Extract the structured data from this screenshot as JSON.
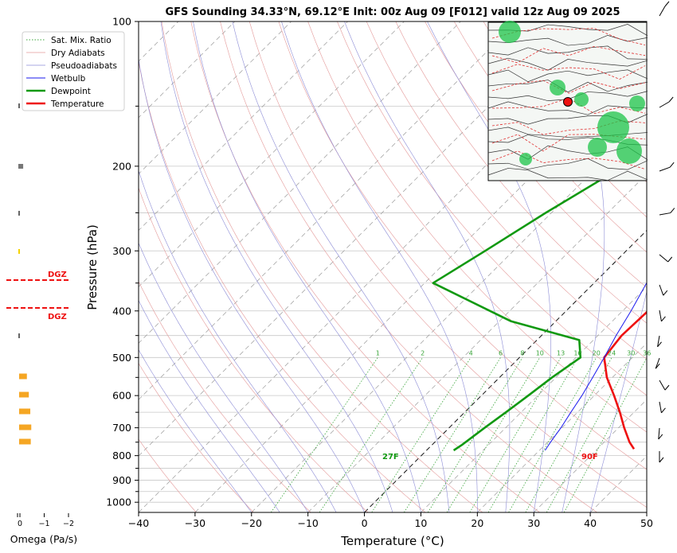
{
  "chart_data": {
    "type": "line",
    "title": "GFS Sounding 34.33°N, 69.12°E Init: 00z Aug 09 [F012] valid 12z Aug 09 2025",
    "xlabel": "Temperature (°C)",
    "ylabel": "Pressure (hPa)",
    "xlim": [
      -40,
      50
    ],
    "ylim": [
      1050,
      100
    ],
    "y_scale": "log",
    "x_ticks": [
      "−40",
      "−30",
      "−20",
      "−10",
      "0",
      "10",
      "20",
      "30",
      "40",
      "50"
    ],
    "y_ticks": [
      "100",
      "200",
      "300",
      "400",
      "500",
      "600",
      "700",
      "800",
      "900",
      "1000"
    ],
    "grid": true,
    "legend_position": "top-left",
    "legend": [
      "Sat. Mix. Ratio",
      "Dry Adiabats",
      "Pseudoadiabats",
      "Wetbulb",
      "Dewpoint",
      "Temperature"
    ],
    "series": [
      {
        "name": "Temperature",
        "color": "#ee1111",
        "points": [
          [
            -10.5,
            100
          ],
          [
            -7.5,
            150
          ],
          [
            -2,
            200
          ],
          [
            4.5,
            250
          ],
          [
            8.5,
            300
          ],
          [
            12,
            350
          ],
          [
            14.5,
            400
          ],
          [
            14.2,
            450
          ],
          [
            15,
            500
          ],
          [
            19,
            550
          ],
          [
            23.5,
            600
          ],
          [
            27.5,
            650
          ],
          [
            31,
            700
          ],
          [
            34.5,
            750
          ],
          [
            36.5,
            775
          ]
        ]
      },
      {
        "name": "Dewpoint",
        "color": "#119911",
        "points": [
          [
            -18.5,
            100
          ],
          [
            -23,
            150
          ],
          [
            -15.5,
            200
          ],
          [
            -21,
            250
          ],
          [
            -25,
            300
          ],
          [
            -28.5,
            350
          ],
          [
            -8,
            420
          ],
          [
            7.5,
            460
          ],
          [
            10.8,
            500
          ],
          [
            9.3,
            550
          ],
          [
            8.3,
            600
          ],
          [
            7.3,
            650
          ],
          [
            6.3,
            700
          ],
          [
            5.3,
            760
          ],
          [
            4.8,
            780
          ]
        ]
      },
      {
        "name": "Wetbulb",
        "color": "#1a1aee",
        "points": [
          [
            -10.5,
            100
          ],
          [
            -7.5,
            150
          ],
          [
            -2.5,
            200
          ],
          [
            2.5,
            250
          ],
          [
            6.5,
            300
          ],
          [
            9.3,
            350
          ],
          [
            11.5,
            400
          ],
          [
            13.2,
            450
          ],
          [
            15,
            500
          ],
          [
            16.5,
            550
          ],
          [
            17.8,
            600
          ],
          [
            18.8,
            650
          ],
          [
            19.8,
            700
          ],
          [
            20.5,
            750
          ],
          [
            21,
            780
          ]
        ]
      }
    ],
    "annotations": {
      "surface_temp_label": "90F",
      "surface_dewpoint_label": "27F"
    },
    "mixing_ratio_labels": [
      "1",
      "2",
      "4",
      "6",
      "8",
      "10",
      "13",
      "16",
      "20",
      "24",
      "30",
      "36"
    ],
    "omega": {
      "xlabel": "Omega (Pa/s)",
      "ticks": [
        "0",
        "−1",
        "−2"
      ],
      "dgz_label": "DGZ",
      "dgz_color": "#ee1111",
      "bar_color": "#f5a623"
    },
    "map_inset": {
      "location_marker_color": "#ee1111"
    }
  }
}
